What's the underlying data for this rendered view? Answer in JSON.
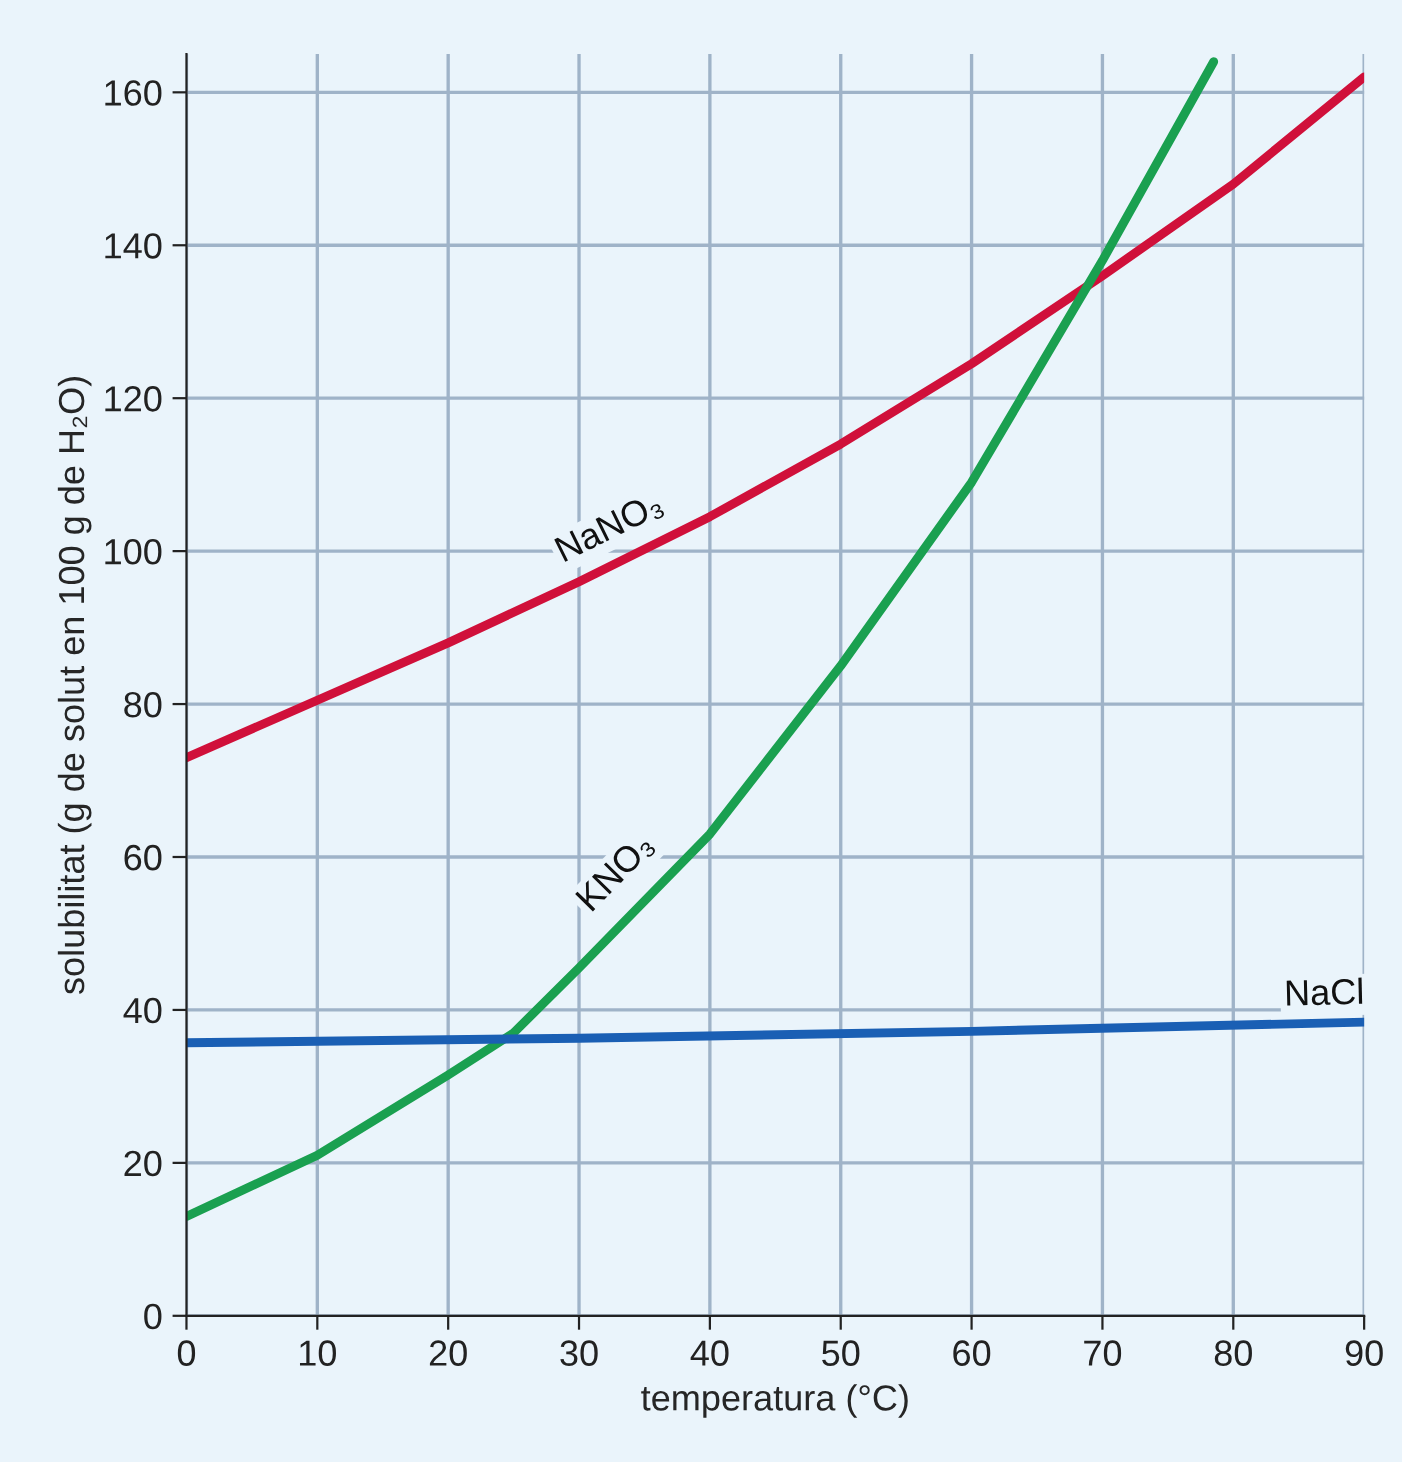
{
  "chart_data": {
    "type": "line",
    "xlabel": "temperatura (°C)",
    "ylabel": "solubilitat (g de solut en 100 g de H₂O)",
    "xlim": [
      0,
      90
    ],
    "xticks": [
      0,
      10,
      20,
      30,
      40,
      50,
      60,
      70,
      80,
      90
    ],
    "ylim": [
      0,
      165
    ],
    "yticks": [
      0,
      20,
      40,
      60,
      80,
      100,
      120,
      140,
      160
    ],
    "grid": true,
    "legend": false,
    "marker": "none",
    "line_style": "solid",
    "series": [
      {
        "name": "NaNO₃",
        "color": "#d0103a",
        "x": [
          0,
          10,
          20,
          30,
          40,
          50,
          60,
          70,
          80,
          90
        ],
        "values": [
          73,
          80.5,
          88,
          96,
          104.5,
          114,
          124.5,
          136,
          148,
          162
        ]
      },
      {
        "name": "KNO₃",
        "color": "#1aa050",
        "x": [
          0,
          10,
          20,
          25,
          30,
          40,
          50,
          60,
          70,
          78.5
        ],
        "values": [
          13,
          21,
          31.5,
          37,
          45.5,
          63,
          85,
          109,
          138,
          164
        ]
      },
      {
        "name": "NaCl",
        "color": "#1a5fb4",
        "x": [
          0,
          30,
          60,
          90
        ],
        "values": [
          35.7,
          36.3,
          37.2,
          38.4
        ]
      }
    ]
  }
}
